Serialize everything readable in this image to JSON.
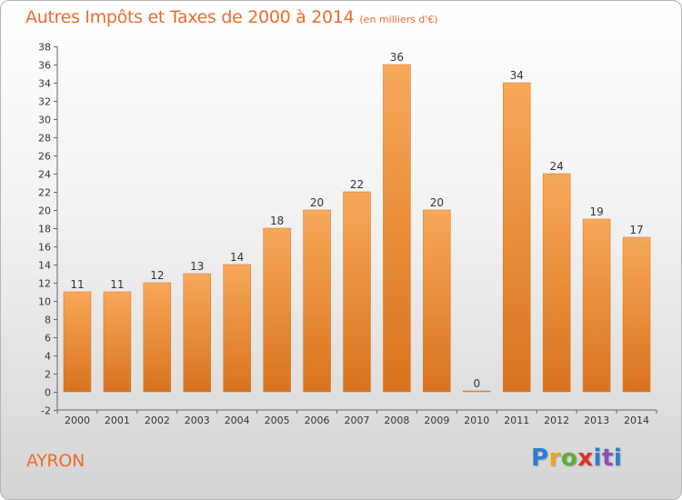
{
  "title": "Autres Impôts et Taxes de 2000 à 2014",
  "subtitle": "(en milliers d'€)",
  "commune": "AYRON",
  "logo": {
    "letters": [
      "P",
      "r",
      "o",
      "x",
      "i",
      "t",
      "i"
    ]
  },
  "colors": {
    "bar": "#f0892e",
    "bar_light": "#f7a85a",
    "bar_dark": "#d8731e",
    "accent": "#ec6b2c"
  },
  "chart_data": {
    "type": "bar",
    "categories": [
      "2000",
      "2001",
      "2002",
      "2003",
      "2004",
      "2005",
      "2006",
      "2007",
      "2008",
      "2009",
      "2010",
      "2011",
      "2012",
      "2013",
      "2014"
    ],
    "values": [
      11,
      11,
      12,
      13,
      14,
      18,
      20,
      22,
      36,
      20,
      0,
      34,
      24,
      19,
      17
    ],
    "ylim": [
      -2,
      38
    ],
    "yticks": [
      -2,
      0,
      2,
      4,
      6,
      8,
      10,
      12,
      14,
      16,
      18,
      20,
      22,
      24,
      26,
      28,
      30,
      32,
      34,
      36,
      38
    ],
    "grid": false
  }
}
